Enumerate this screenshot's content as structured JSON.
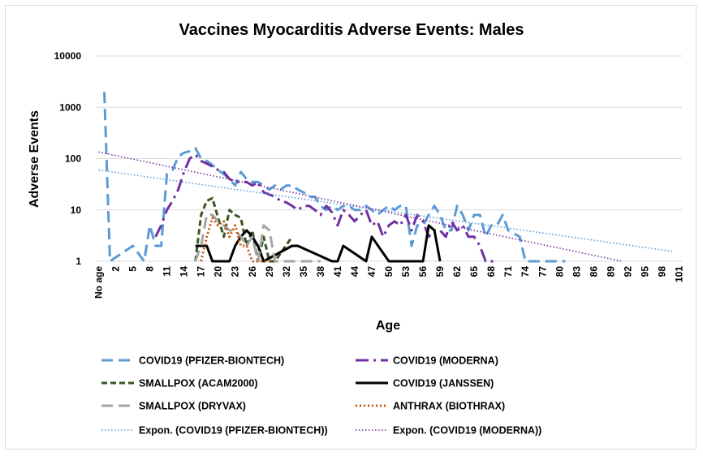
{
  "chart_data": {
    "type": "line",
    "title": "Vaccines Myocarditis Adverse Events: Males",
    "xlabel": "Age",
    "ylabel": "Adverse Events",
    "yscale": "log",
    "ylim": [
      1,
      10000
    ],
    "yticks": [
      "10000",
      "1000",
      "100",
      "10",
      "1"
    ],
    "xticks": [
      "No age",
      "2",
      "5",
      "8",
      "11",
      "14",
      "17",
      "20",
      "23",
      "26",
      "29",
      "32",
      "35",
      "38",
      "41",
      "44",
      "47",
      "50",
      "53",
      "56",
      "59",
      "62",
      "65",
      "68",
      "71",
      "74",
      "77",
      "80",
      "83",
      "86",
      "89",
      "92",
      "95",
      "98",
      "101"
    ],
    "grid": "horizontal",
    "legend_position": "bottom",
    "series": [
      {
        "name": "COVID19 (PFIZER-BIONTECH)",
        "color": "#5b9bd5",
        "dash": "long-dash",
        "points": [
          [
            0,
            2000
          ],
          [
            1,
            1
          ],
          [
            5,
            2
          ],
          [
            7,
            1
          ],
          [
            8,
            5
          ],
          [
            9,
            2
          ],
          [
            10,
            2
          ],
          [
            11,
            50
          ],
          [
            12,
            60
          ],
          [
            13,
            110
          ],
          [
            14,
            130
          ],
          [
            15,
            140
          ],
          [
            16,
            160
          ],
          [
            17,
            100
          ],
          [
            18,
            90
          ],
          [
            19,
            75
          ],
          [
            20,
            60
          ],
          [
            21,
            50
          ],
          [
            22,
            40
          ],
          [
            23,
            30
          ],
          [
            24,
            55
          ],
          [
            25,
            40
          ],
          [
            26,
            35
          ],
          [
            27,
            35
          ],
          [
            28,
            30
          ],
          [
            29,
            25
          ],
          [
            30,
            30
          ],
          [
            31,
            25
          ],
          [
            32,
            30
          ],
          [
            33,
            30
          ],
          [
            34,
            25
          ],
          [
            35,
            22
          ],
          [
            36,
            18
          ],
          [
            37,
            18
          ],
          [
            38,
            12
          ],
          [
            39,
            10
          ],
          [
            40,
            12
          ],
          [
            41,
            10
          ],
          [
            42,
            12
          ],
          [
            43,
            12
          ],
          [
            44,
            10
          ],
          [
            45,
            10
          ],
          [
            46,
            12
          ],
          [
            47,
            10
          ],
          [
            48,
            8
          ],
          [
            49,
            10
          ],
          [
            50,
            12
          ],
          [
            51,
            10
          ],
          [
            52,
            12
          ],
          [
            53,
            12
          ],
          [
            54,
            2
          ],
          [
            55,
            5
          ],
          [
            56,
            5
          ],
          [
            57,
            8
          ],
          [
            58,
            12
          ],
          [
            59,
            8
          ],
          [
            60,
            4
          ],
          [
            61,
            4
          ],
          [
            62,
            12
          ],
          [
            63,
            8
          ],
          [
            64,
            4
          ],
          [
            65,
            8
          ],
          [
            66,
            8
          ],
          [
            67,
            3
          ],
          [
            68,
            5
          ],
          [
            69,
            5
          ],
          [
            70,
            8
          ],
          [
            71,
            4
          ],
          [
            73,
            3
          ],
          [
            74,
            1
          ],
          [
            80,
            1
          ],
          [
            81,
            1
          ]
        ]
      },
      {
        "name": "COVID19 (MODERNA)",
        "color": "#7030a0",
        "dash": "long-dash-dot",
        "points": [
          [
            9,
            3
          ],
          [
            10,
            5
          ],
          [
            11,
            10
          ],
          [
            12,
            15
          ],
          [
            13,
            25
          ],
          [
            14,
            55
          ],
          [
            15,
            100
          ],
          [
            16,
            120
          ],
          [
            17,
            90
          ],
          [
            18,
            80
          ],
          [
            19,
            70
          ],
          [
            20,
            60
          ],
          [
            21,
            55
          ],
          [
            22,
            40
          ],
          [
            23,
            35
          ],
          [
            24,
            35
          ],
          [
            25,
            35
          ],
          [
            26,
            30
          ],
          [
            27,
            35
          ],
          [
            28,
            22
          ],
          [
            29,
            20
          ],
          [
            30,
            18
          ],
          [
            31,
            15
          ],
          [
            32,
            14
          ],
          [
            33,
            12
          ],
          [
            34,
            10
          ],
          [
            35,
            12
          ],
          [
            36,
            12
          ],
          [
            37,
            10
          ],
          [
            38,
            8
          ],
          [
            39,
            12
          ],
          [
            40,
            9
          ],
          [
            41,
            5
          ],
          [
            42,
            10
          ],
          [
            43,
            8
          ],
          [
            44,
            6
          ],
          [
            45,
            8
          ],
          [
            46,
            10
          ],
          [
            47,
            5
          ],
          [
            48,
            6
          ],
          [
            49,
            3
          ],
          [
            50,
            5
          ],
          [
            51,
            6
          ],
          [
            52,
            5
          ],
          [
            53,
            8
          ],
          [
            54,
            4
          ],
          [
            55,
            8
          ],
          [
            56,
            6
          ],
          [
            57,
            3
          ],
          [
            58,
            4
          ],
          [
            59,
            4
          ],
          [
            60,
            3
          ],
          [
            61,
            6
          ],
          [
            62,
            4
          ],
          [
            63,
            5
          ],
          [
            64,
            3
          ],
          [
            65,
            3
          ],
          [
            66,
            2
          ],
          [
            67,
            1
          ],
          [
            69,
            1
          ]
        ]
      },
      {
        "name": "SMALLPOX (ACAM2000)",
        "color": "#375623",
        "dash": "short-dash",
        "points": [
          [
            16,
            1
          ],
          [
            17,
            8
          ],
          [
            18,
            15
          ],
          [
            19,
            17
          ],
          [
            20,
            7
          ],
          [
            21,
            3
          ],
          [
            22,
            10
          ],
          [
            23,
            8
          ],
          [
            24,
            7
          ],
          [
            25,
            2
          ],
          [
            26,
            4
          ],
          [
            27,
            1
          ],
          [
            28,
            3
          ],
          [
            29,
            1
          ],
          [
            30,
            1
          ],
          [
            33,
            3
          ]
        ]
      },
      {
        "name": "COVID19 (JANSSEN)",
        "color": "#000000",
        "dash": "solid",
        "points": [
          [
            16,
            2
          ],
          [
            17,
            2
          ],
          [
            18,
            2
          ],
          [
            19,
            1
          ],
          [
            22,
            1
          ],
          [
            23,
            2
          ],
          [
            24,
            3
          ],
          [
            25,
            4
          ],
          [
            26,
            3
          ],
          [
            27,
            2
          ],
          [
            28,
            1
          ],
          [
            33,
            2
          ],
          [
            34,
            2
          ],
          [
            40,
            1
          ],
          [
            41,
            1
          ],
          [
            42,
            2
          ],
          [
            46,
            1
          ],
          [
            47,
            3
          ],
          [
            50,
            1
          ],
          [
            51,
            1
          ],
          [
            56,
            1
          ],
          [
            57,
            5
          ],
          [
            58,
            4
          ],
          [
            59,
            1
          ]
        ]
      },
      {
        "name": "SMALLPOX (DRYVAX)",
        "color": "#a5a5a5",
        "dash": "long-dash",
        "points": [
          [
            16,
            1
          ],
          [
            17,
            2
          ],
          [
            18,
            8
          ],
          [
            19,
            8
          ],
          [
            20,
            6
          ],
          [
            21,
            5
          ],
          [
            22,
            4
          ],
          [
            23,
            4
          ],
          [
            24,
            3
          ],
          [
            25,
            2
          ],
          [
            26,
            3
          ],
          [
            27,
            1
          ],
          [
            28,
            5
          ],
          [
            29,
            4
          ],
          [
            30,
            1
          ],
          [
            34,
            1
          ],
          [
            35,
            1
          ],
          [
            36,
            1
          ],
          [
            37,
            1
          ],
          [
            38,
            1
          ]
        ]
      },
      {
        "name": "ANTHRAX (BIOTHRAX)",
        "color": "#c55a11",
        "dash": "dotted",
        "points": [
          [
            17,
            1
          ],
          [
            18,
            3
          ],
          [
            19,
            7
          ],
          [
            20,
            5
          ],
          [
            21,
            6
          ],
          [
            22,
            3
          ],
          [
            23,
            5
          ],
          [
            24,
            2
          ],
          [
            25,
            2
          ],
          [
            26,
            1
          ],
          [
            28,
            1
          ],
          [
            29,
            1
          ]
        ]
      },
      {
        "name": "Expon. (COVID19 (PFIZER-BIONTECH))",
        "color": "#5b9bd5",
        "dash": "fine-dotted",
        "type": "trendline",
        "points": [
          [
            0,
            60
          ],
          [
            101,
            1.55
          ]
        ]
      },
      {
        "name": "Expon. (COVID19 (MODERNA))",
        "color": "#7030a0",
        "dash": "fine-dotted",
        "type": "trendline",
        "points": [
          [
            0,
            135
          ],
          [
            92,
            1
          ]
        ]
      }
    ]
  }
}
